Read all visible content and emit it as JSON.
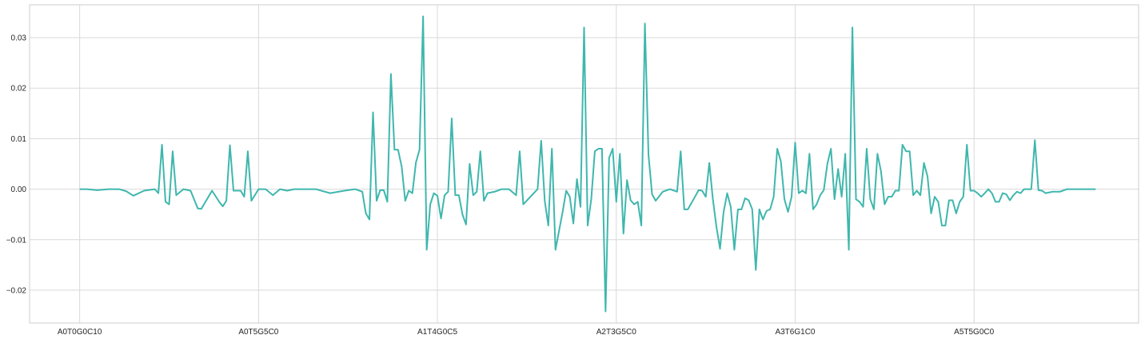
{
  "chart_data": {
    "type": "line",
    "title": "",
    "xlabel": "",
    "ylabel": "",
    "x_tick_labels": [
      "A0T0G0C10",
      "A0T5G5C0",
      "A1T4G0C5",
      "A2T3G5C0",
      "A3T6G1C0",
      "A5T5G0C0"
    ],
    "y_tick_labels": [
      "−0.02",
      "−0.01",
      "0.00",
      "0.01",
      "0.02",
      "0.03"
    ],
    "y_ticks": [
      -0.02,
      -0.01,
      0.0,
      0.01,
      0.02,
      0.03
    ],
    "ylim": [
      -0.0265,
      0.0365
    ],
    "xlim": [
      -14,
      296
    ],
    "x_tick_positions": [
      0,
      50,
      100,
      150,
      200,
      250
    ],
    "grid": true,
    "series": [
      {
        "color": "#3fb7ad",
        "points": [
          [
            0,
            0.0
          ],
          [
            2,
            0.0
          ],
          [
            5,
            -0.0002
          ],
          [
            8,
            0.0
          ],
          [
            11,
            0.0
          ],
          [
            13,
            -0.0004
          ],
          [
            15,
            -0.0013
          ],
          [
            18,
            -0.0003
          ],
          [
            21,
            0.0
          ],
          [
            22,
            -0.0008
          ],
          [
            23,
            0.0088
          ],
          [
            24,
            -0.0025
          ],
          [
            25,
            -0.003
          ],
          [
            26,
            0.0075
          ],
          [
            27,
            -0.0012
          ],
          [
            29,
            0.0
          ],
          [
            31,
            -0.0003
          ],
          [
            33,
            -0.0038
          ],
          [
            34,
            -0.0039
          ],
          [
            37,
            -0.0003
          ],
          [
            39,
            -0.0025
          ],
          [
            40,
            -0.0034
          ],
          [
            41,
            -0.0023
          ],
          [
            42,
            0.0087
          ],
          [
            43,
            -0.0003
          ],
          [
            45,
            -0.0003
          ],
          [
            46,
            -0.0015
          ],
          [
            47,
            0.0075
          ],
          [
            48,
            -0.0023
          ],
          [
            50,
            0.0
          ],
          [
            52,
            0.0
          ],
          [
            54,
            -0.0012
          ],
          [
            56,
            0.0
          ],
          [
            58,
            -0.0003
          ],
          [
            60,
            0.0
          ],
          [
            62,
            0.0
          ],
          [
            66,
            0.0
          ],
          [
            70,
            -0.0008
          ],
          [
            74,
            -0.0003
          ],
          [
            77,
            0.0
          ],
          [
            79,
            -0.0005
          ],
          [
            80,
            -0.0048
          ],
          [
            81,
            -0.006
          ],
          [
            82,
            0.0152
          ],
          [
            83,
            -0.0023
          ],
          [
            84,
            -0.0002
          ],
          [
            85,
            -0.0002
          ],
          [
            86,
            -0.0025
          ],
          [
            87,
            0.0228
          ],
          [
            88,
            0.0078
          ],
          [
            89,
            0.0078
          ],
          [
            90,
            0.0045
          ],
          [
            91,
            -0.0023
          ],
          [
            92,
            -0.0003
          ],
          [
            93,
            -0.0008
          ],
          [
            94,
            0.0053
          ],
          [
            95,
            0.0078
          ],
          [
            96,
            0.0342
          ],
          [
            97,
            -0.012
          ],
          [
            98,
            -0.003
          ],
          [
            99,
            -0.0008
          ],
          [
            100,
            -0.0013
          ],
          [
            101,
            -0.0058
          ],
          [
            102,
            -0.0012
          ],
          [
            103,
            -0.0005
          ],
          [
            104,
            0.014
          ],
          [
            105,
            -0.0012
          ],
          [
            106,
            -0.0012
          ],
          [
            107,
            -0.005
          ],
          [
            108,
            -0.007
          ],
          [
            109,
            0.005
          ],
          [
            110,
            -0.0012
          ],
          [
            111,
            -0.0005
          ],
          [
            112,
            0.0075
          ],
          [
            113,
            -0.0023
          ],
          [
            114,
            -0.0008
          ],
          [
            116,
            -0.0005
          ],
          [
            118,
            0.0
          ],
          [
            120,
            0.0
          ],
          [
            122,
            -0.0012
          ],
          [
            123,
            0.0075
          ],
          [
            124,
            -0.003
          ],
          [
            126,
            -0.0015
          ],
          [
            128,
            0.0
          ],
          [
            129,
            0.0096
          ],
          [
            130,
            -0.0023
          ],
          [
            131,
            -0.0072
          ],
          [
            132,
            0.008
          ],
          [
            133,
            -0.012
          ],
          [
            135,
            -0.0045
          ],
          [
            136,
            -0.0003
          ],
          [
            137,
            -0.0015
          ],
          [
            138,
            -0.0068
          ],
          [
            139,
            0.002
          ],
          [
            140,
            -0.0035
          ],
          [
            141,
            0.032
          ],
          [
            142,
            -0.0072
          ],
          [
            143,
            -0.002
          ],
          [
            144,
            0.0075
          ],
          [
            145,
            0.008
          ],
          [
            146,
            0.008
          ],
          [
            147,
            -0.0242
          ],
          [
            148,
            0.0062
          ],
          [
            149,
            0.008
          ],
          [
            150,
            -0.0025
          ],
          [
            151,
            0.007
          ],
          [
            152,
            -0.0088
          ],
          [
            153,
            0.0018
          ],
          [
            154,
            -0.0022
          ],
          [
            155,
            -0.003
          ],
          [
            156,
            -0.0025
          ],
          [
            157,
            -0.0072
          ],
          [
            158,
            0.0328
          ],
          [
            159,
            0.0068
          ],
          [
            160,
            -0.001
          ],
          [
            161,
            -0.0023
          ],
          [
            163,
            -0.0005
          ],
          [
            165,
            0.0
          ],
          [
            167,
            -0.0005
          ],
          [
            168,
            0.0075
          ],
          [
            169,
            -0.004
          ],
          [
            170,
            -0.004
          ],
          [
            172,
            -0.0015
          ],
          [
            173,
            -0.0002
          ],
          [
            174,
            -0.0003
          ],
          [
            175,
            -0.0015
          ],
          [
            176,
            0.0052
          ],
          [
            177,
            -0.002
          ],
          [
            178,
            -0.0075
          ],
          [
            179,
            -0.0118
          ],
          [
            180,
            -0.0045
          ],
          [
            181,
            -0.0008
          ],
          [
            182,
            -0.0035
          ],
          [
            183,
            -0.012
          ],
          [
            184,
            -0.004
          ],
          [
            185,
            -0.004
          ],
          [
            186,
            -0.0018
          ],
          [
            187,
            -0.0022
          ],
          [
            188,
            -0.004
          ],
          [
            189,
            -0.016
          ],
          [
            190,
            -0.004
          ],
          [
            191,
            -0.006
          ],
          [
            192,
            -0.0043
          ],
          [
            193,
            -0.004
          ],
          [
            194,
            -0.0015
          ],
          [
            195,
            0.008
          ],
          [
            196,
            0.0055
          ],
          [
            197,
            -0.002
          ],
          [
            198,
            -0.0045
          ],
          [
            199,
            -0.0015
          ],
          [
            200,
            0.0092
          ],
          [
            201,
            -0.0008
          ],
          [
            202,
            -0.0003
          ],
          [
            203,
            -0.0008
          ],
          [
            204,
            0.007
          ],
          [
            205,
            -0.004
          ],
          [
            206,
            -0.003
          ],
          [
            207,
            -0.0012
          ],
          [
            208,
            -0.0002
          ],
          [
            209,
            0.005
          ],
          [
            210,
            0.008
          ],
          [
            211,
            -0.002
          ],
          [
            212,
            0.004
          ],
          [
            213,
            -0.0015
          ],
          [
            214,
            0.007
          ],
          [
            215,
            -0.012
          ],
          [
            216,
            0.032
          ],
          [
            217,
            -0.002
          ],
          [
            218,
            -0.0025
          ],
          [
            219,
            -0.0035
          ],
          [
            220,
            0.008
          ],
          [
            221,
            -0.002
          ],
          [
            222,
            -0.004
          ],
          [
            223,
            0.007
          ],
          [
            224,
            0.0035
          ],
          [
            225,
            -0.003
          ],
          [
            226,
            -0.0015
          ],
          [
            227,
            -0.0015
          ],
          [
            228,
            -0.0003
          ],
          [
            229,
            -0.0003
          ],
          [
            230,
            0.0088
          ],
          [
            231,
            0.0075
          ],
          [
            232,
            0.0075
          ],
          [
            233,
            -0.0012
          ],
          [
            234,
            -0.0003
          ],
          [
            235,
            -0.0012
          ],
          [
            236,
            0.0052
          ],
          [
            237,
            0.0025
          ],
          [
            238,
            -0.0048
          ],
          [
            239,
            -0.0015
          ],
          [
            240,
            -0.0025
          ],
          [
            241,
            -0.0072
          ],
          [
            242,
            -0.0072
          ],
          [
            243,
            -0.0022
          ],
          [
            244,
            -0.0022
          ],
          [
            245,
            -0.0048
          ],
          [
            246,
            -0.0025
          ],
          [
            247,
            -0.0015
          ],
          [
            248,
            0.0088
          ],
          [
            249,
            -0.0003
          ],
          [
            250,
            -0.0003
          ],
          [
            251,
            -0.0008
          ],
          [
            252,
            -0.0015
          ],
          [
            253,
            -0.0008
          ],
          [
            254,
            0.0
          ],
          [
            255,
            -0.0008
          ],
          [
            256,
            -0.0025
          ],
          [
            257,
            -0.0025
          ],
          [
            258,
            -0.0008
          ],
          [
            259,
            -0.001
          ],
          [
            260,
            -0.0022
          ],
          [
            261,
            -0.0012
          ],
          [
            262,
            -0.0005
          ],
          [
            263,
            -0.0008
          ],
          [
            264,
            0.0
          ],
          [
            266,
            0.0
          ],
          [
            267,
            0.0097
          ],
          [
            268,
            -0.0002
          ],
          [
            269,
            -0.0003
          ],
          [
            270,
            -0.0008
          ],
          [
            272,
            -0.0005
          ],
          [
            274,
            -0.0005
          ],
          [
            276,
            0.0
          ],
          [
            280,
            0.0
          ],
          [
            284,
            0.0
          ]
        ]
      }
    ]
  }
}
